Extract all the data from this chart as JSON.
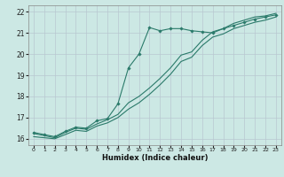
{
  "xlabel": "Humidex (Indice chaleur)",
  "bg_color": "#cce8e4",
  "grid_color": "#b8c8d0",
  "line_color": "#2a7a6a",
  "xlim": [
    -0.5,
    23.5
  ],
  "ylim": [
    15.7,
    22.3
  ],
  "yticks": [
    16,
    17,
    18,
    19,
    20,
    21,
    22
  ],
  "xticks": [
    0,
    1,
    2,
    3,
    4,
    5,
    6,
    7,
    8,
    9,
    10,
    11,
    12,
    13,
    14,
    15,
    16,
    17,
    18,
    19,
    20,
    21,
    22,
    23
  ],
  "line1_x": [
    0,
    1,
    2,
    3,
    4,
    5,
    6,
    7,
    8,
    9,
    10,
    11,
    12,
    13,
    14,
    15,
    16,
    17,
    18,
    19,
    20,
    21,
    22,
    23
  ],
  "line1_y": [
    16.3,
    16.2,
    16.1,
    16.35,
    16.55,
    16.5,
    16.85,
    16.95,
    17.65,
    19.35,
    20.0,
    21.25,
    21.1,
    21.2,
    21.2,
    21.1,
    21.05,
    21.0,
    21.2,
    21.35,
    21.5,
    21.65,
    21.75,
    21.85
  ],
  "line2_x": [
    0,
    1,
    2,
    3,
    4,
    5,
    6,
    7,
    8,
    9,
    10,
    11,
    12,
    13,
    14,
    15,
    16,
    17,
    18,
    19,
    20,
    21,
    22,
    23
  ],
  "line2_y": [
    16.25,
    16.15,
    16.05,
    16.3,
    16.5,
    16.45,
    16.7,
    16.9,
    17.15,
    17.7,
    18.0,
    18.4,
    18.85,
    19.35,
    19.95,
    20.1,
    20.65,
    21.05,
    21.2,
    21.45,
    21.6,
    21.75,
    21.8,
    21.92
  ],
  "line3_x": [
    0,
    1,
    2,
    3,
    4,
    5,
    6,
    7,
    8,
    9,
    10,
    11,
    12,
    13,
    14,
    15,
    16,
    17,
    18,
    19,
    20,
    21,
    22,
    23
  ],
  "line3_y": [
    16.1,
    16.05,
    16.0,
    16.2,
    16.4,
    16.35,
    16.6,
    16.75,
    17.0,
    17.4,
    17.7,
    18.1,
    18.55,
    19.05,
    19.65,
    19.85,
    20.4,
    20.8,
    20.95,
    21.2,
    21.35,
    21.5,
    21.6,
    21.75
  ]
}
